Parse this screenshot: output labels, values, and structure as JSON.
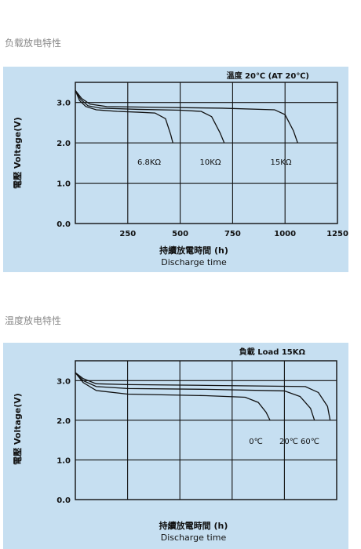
{
  "headings": [
    "负载放电特性",
    "温度放电特性"
  ],
  "chart_data": [
    {
      "type": "line",
      "title": "",
      "annotation": "溫度 20℃ (AT 20℃)",
      "xlabel_zh": "持續放電時間 (h)",
      "xlabel_en": "Discharge time",
      "ylabel_zh": "電壓",
      "ylabel_en": "Voltage(V)",
      "xlim": [
        0,
        1250
      ],
      "ylim": [
        0,
        3.5
      ],
      "x_ticks": [
        "250",
        "500",
        "750",
        "1000",
        "1250"
      ],
      "y_ticks": [
        "0.0",
        "1.0",
        "2.0",
        "3.0"
      ],
      "grid": true,
      "series": [
        {
          "name": "6.8KΩ",
          "x": [
            0,
            20,
            50,
            100,
            200,
            300,
            380,
            430,
            455,
            465
          ],
          "y": [
            3.3,
            3.05,
            2.9,
            2.82,
            2.78,
            2.76,
            2.74,
            2.6,
            2.2,
            2.0
          ]
        },
        {
          "name": "10KΩ",
          "x": [
            0,
            25,
            60,
            120,
            300,
            500,
            600,
            650,
            690,
            710
          ],
          "y": [
            3.3,
            3.08,
            2.92,
            2.86,
            2.83,
            2.81,
            2.78,
            2.65,
            2.25,
            2.0
          ]
        },
        {
          "name": "15KΩ",
          "x": [
            0,
            30,
            70,
            150,
            400,
            700,
            950,
            1000,
            1040,
            1060
          ],
          "y": [
            3.3,
            3.1,
            2.96,
            2.9,
            2.88,
            2.86,
            2.82,
            2.7,
            2.3,
            2.0
          ]
        }
      ]
    },
    {
      "type": "line",
      "title": "",
      "annotation": "負載 Load 15KΩ",
      "xlabel_zh": "持續放電時間 (h)",
      "xlabel_en": "Discharge time",
      "ylabel_zh": "電壓",
      "ylabel_en": "Voltage(V)",
      "ylim": [
        0,
        3.5
      ],
      "x_ticks": [],
      "y_ticks": [
        "0.0",
        "1.0",
        "2.0",
        "3.0"
      ],
      "grid": true,
      "series": [
        {
          "name": "0℃",
          "x": [
            0,
            0.03,
            0.08,
            0.2,
            0.5,
            0.65,
            0.7,
            0.73,
            0.745
          ],
          "y": [
            3.2,
            2.95,
            2.75,
            2.66,
            2.62,
            2.58,
            2.45,
            2.2,
            2.0
          ]
        },
        {
          "name": "20℃",
          "x": [
            0,
            0.03,
            0.08,
            0.2,
            0.5,
            0.8,
            0.86,
            0.9,
            0.915
          ],
          "y": [
            3.2,
            3.0,
            2.85,
            2.8,
            2.78,
            2.74,
            2.6,
            2.3,
            2.0
          ]
        },
        {
          "name": "60℃",
          "x": [
            0,
            0.03,
            0.08,
            0.2,
            0.5,
            0.88,
            0.93,
            0.965,
            0.975
          ],
          "y": [
            3.2,
            3.05,
            2.92,
            2.9,
            2.88,
            2.85,
            2.7,
            2.35,
            2.0
          ]
        }
      ]
    }
  ]
}
